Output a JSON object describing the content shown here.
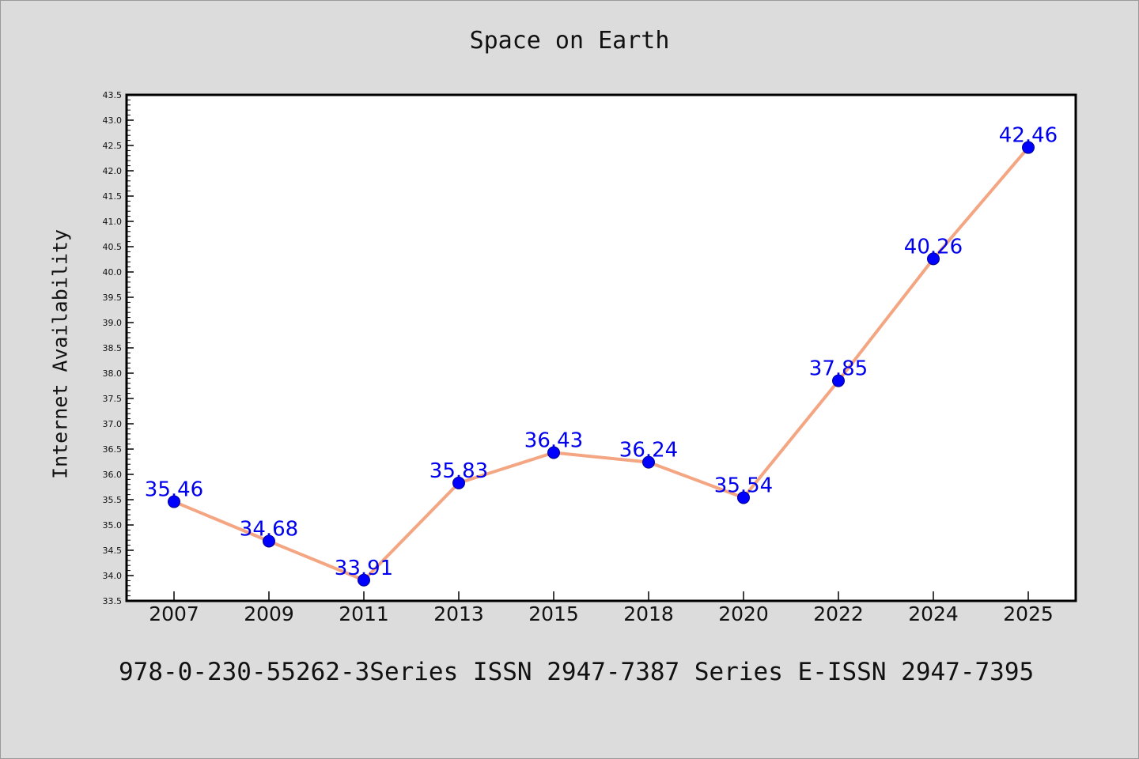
{
  "chart_data": {
    "type": "line",
    "title": "Space on Earth",
    "xlabel": "",
    "ylabel": "Internet Availability",
    "categories": [
      "2007",
      "2009",
      "2011",
      "2013",
      "2015",
      "2018",
      "2020",
      "2022",
      "2024",
      "2025"
    ],
    "series": [
      {
        "values": [
          35.46,
          34.68,
          33.91,
          35.83,
          36.43,
          36.24,
          35.54,
          37.85,
          40.26,
          42.46
        ],
        "labels": [
          "35.46",
          "34.68",
          "33.91",
          "35.83",
          "36.43",
          "36.24",
          "35.54",
          "37.85",
          "40.26",
          "42.46"
        ],
        "line_color": "#f4a582",
        "marker_color": "#0000ff"
      }
    ],
    "ylim": [
      33.5,
      43.5
    ],
    "ytick_labels": [
      "33.5",
      "34.0",
      "34.5",
      "35.0",
      "35.5",
      "36.0",
      "36.5",
      "37.0",
      "37.5",
      "38.0",
      "38.5",
      "39.0",
      "39.5",
      "40.0",
      "40.5",
      "41.0",
      "41.5",
      "42.0",
      "42.5",
      "43.0",
      "43.5"
    ],
    "grid": false,
    "legend": "none"
  },
  "footer": {
    "text": "978-0-230-55262-3Series ISSN 2947-7387 Series E-ISSN 2947-7395"
  },
  "colors": {
    "background": "#dcdcdc",
    "plot_background": "#ffffff",
    "label": "#0000ee"
  }
}
